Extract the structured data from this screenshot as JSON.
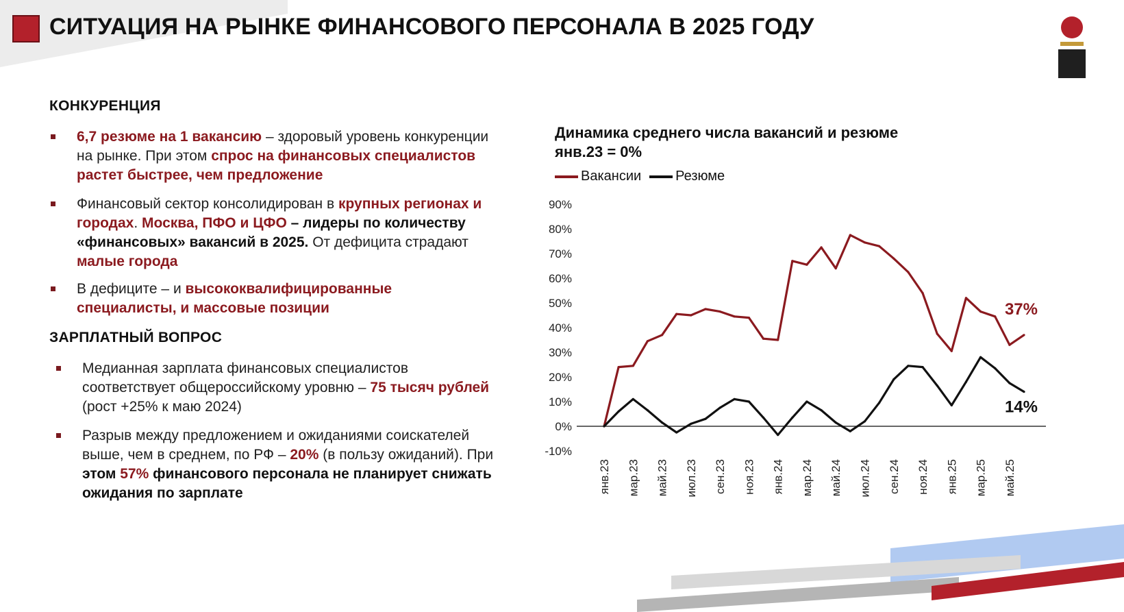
{
  "header": {
    "title": "СИТУАЦИЯ НА РЫНКЕ ФИНАНСОВОГО ПЕРСОНАЛА В 2025 ГОДУ"
  },
  "colors": {
    "brand_red": "#8b1a1f",
    "accent_red": "#b3212b",
    "resume_line": "#111111",
    "deco_blue": "#a9c4ef",
    "deco_gray": "#b5b5b5"
  },
  "sections": {
    "competition": {
      "heading": "КОНКУРЕНЦИЯ",
      "bullets": [
        {
          "l1a": "6,7 резюме на 1 вакансию",
          "l1b": " – здоровый уровень конкуренции",
          "l2a": "на рынке. При этом ",
          "l2b": "спрос на финансовых специалистов",
          "l3": "растет быстрее, чем предложение"
        },
        {
          "l1a": "Финансовый сектор консолидирован в ",
          "l1b": "крупных регионах и",
          "l2a": "городах",
          "l2b": ". ",
          "l2c": "Москва, ПФО и ЦФО",
          "l2d": " – лидеры по количеству",
          "l3a": "«финансовых» вакансий в 2025.",
          "l3b": " От дефицита страдают",
          "l4": "малые города"
        },
        {
          "l1a": "В дефиците – и ",
          "l1b": "высококвалифицированные",
          "l2": "специалисты, и массовые позиции"
        }
      ]
    },
    "salary": {
      "heading": "ЗАРПЛАТНЫЙ ВОПРОС",
      "bullets": [
        {
          "l1": "Медианная зарплата финансовых специалистов",
          "l2a": "соответствует общероссийскому уровню – ",
          "l2b": "75 тысяч рублей",
          "l3": "(рост +25% к маю 2024)"
        },
        {
          "l1": "Разрыв между предложением и ожиданиями соискателей",
          "l2a": "выше, чем в среднем, по РФ – ",
          "l2b": "20%",
          "l2c": " (в пользу ожиданий). При",
          "l3a": "этом ",
          "l3b": "57%",
          "l3c": " финансового персонала не планирует снижать",
          "l4": "ожидания по зарплате"
        }
      ]
    }
  },
  "chart_data": {
    "type": "line",
    "title": "Динамика среднего числа вакансий и резюме",
    "subtitle": "янв.23 = 0%",
    "legend_placement": "top-left",
    "grid": false,
    "ylim": [
      -10,
      90
    ],
    "y_ticks": [
      -10,
      0,
      10,
      20,
      30,
      40,
      50,
      60,
      70,
      80,
      90
    ],
    "y_tick_labels": [
      "-10%",
      "0%",
      "10%",
      "20%",
      "30%",
      "40%",
      "50%",
      "60%",
      "70%",
      "80%",
      "90%"
    ],
    "x": [
      "янв.23",
      "фев.23",
      "мар.23",
      "апр.23",
      "май.23",
      "июн.23",
      "июл.23",
      "авг.23",
      "сен.23",
      "окт.23",
      "ноя.23",
      "дек.23",
      "янв.24",
      "фев.24",
      "мар.24",
      "апр.24",
      "май.24",
      "июн.24",
      "июл.24",
      "авг.24",
      "сен.24",
      "окт.24",
      "ноя.24",
      "дек.24",
      "янв.25",
      "фев.25",
      "мар.25",
      "апр.25",
      "май.25",
      "июн.25"
    ],
    "x_tick_labels": [
      "янв.23",
      "мар.23",
      "май.23",
      "июл.23",
      "сен.23",
      "ноя.23",
      "янв.24",
      "мар.24",
      "май.24",
      "июл.24",
      "сен.24",
      "ноя.24",
      "янв.25",
      "мар.25",
      "май.25"
    ],
    "series": [
      {
        "name": "Вакансии",
        "color": "#8b1a1f",
        "values": [
          0,
          24,
          24.5,
          34.5,
          37,
          45.5,
          45,
          47.5,
          46.5,
          44.5,
          44,
          35.5,
          35,
          67,
          65.5,
          72.5,
          64,
          77.5,
          74.5,
          73,
          68,
          62.5,
          54,
          37.5,
          30.5,
          52,
          46.5,
          44.5,
          33,
          37
        ]
      },
      {
        "name": "Резюме",
        "color": "#111111",
        "values": [
          0,
          6,
          11,
          6.5,
          1.5,
          -2.5,
          1,
          3,
          7.5,
          11,
          10,
          3.5,
          -3.5,
          3.5,
          10,
          6.5,
          1.5,
          -2,
          2,
          9.5,
          19,
          24.5,
          24,
          16.5,
          8.5,
          18,
          28,
          23.5,
          17.5,
          14
        ]
      }
    ],
    "annotations": [
      "37%",
      "14%"
    ]
  }
}
